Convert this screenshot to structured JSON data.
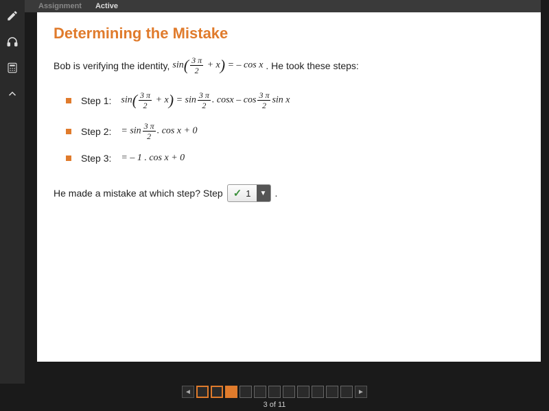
{
  "topbar": {
    "tab1": "Assignment",
    "tab2": "Active"
  },
  "title": "Determining the Mistake",
  "intro_a": "Bob is verifying the identity, ",
  "intro_b": ". He took these steps:",
  "identity": {
    "fn": "sin",
    "num": "3 π",
    "den": "2",
    "plus": "+ x",
    "eq": "= – cos",
    "var": "x"
  },
  "steps": [
    {
      "label": "Step 1:",
      "rhs_parts": {
        "lhs_fn": "sin",
        "num": "3 π",
        "den": "2",
        "plus": "+ x",
        "eq": "= sin",
        "t1_num": "3 π",
        "t1_den": "2",
        "dot1": ". cos",
        "v1": "x",
        "minus": " – cos",
        "t2_num": "3 π",
        "t2_den": "2",
        "dot2": "sin ",
        "v2": "x"
      }
    },
    {
      "label": "Step 2:",
      "rhs_parts": {
        "eq": "= sin",
        "t1_num": "3 π",
        "t1_den": "2",
        "dot1": ". cos ",
        "v1": "x",
        "tail": " + 0"
      }
    },
    {
      "label": "Step 3:",
      "rhs_parts": {
        "eq": "= – 1 . cos ",
        "v1": "x",
        "tail": " + 0"
      }
    }
  ],
  "question_a": "He made a mistake at which step? Step",
  "question_b": ".",
  "dropdown": {
    "value": "1",
    "correct": true
  },
  "pager": {
    "current": 3,
    "total": 11,
    "text": "3 of 11"
  },
  "colors": {
    "accent": "#e07b2c"
  }
}
